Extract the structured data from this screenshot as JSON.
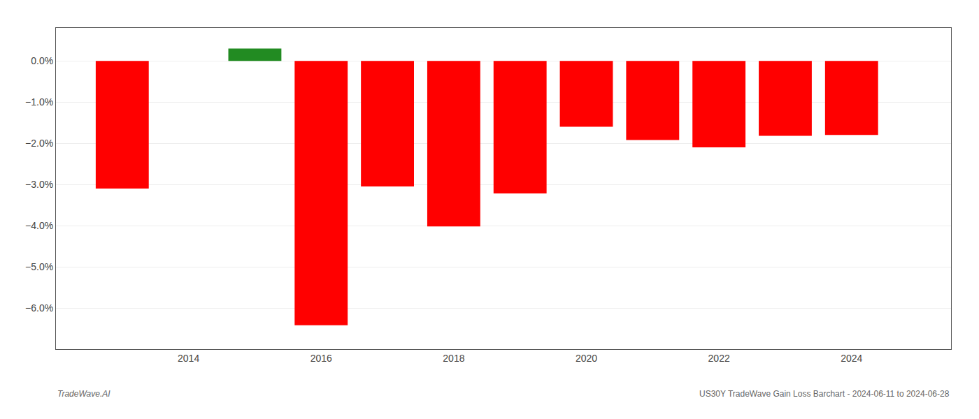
{
  "chart_data": {
    "type": "bar",
    "x": [
      2013,
      2015,
      2016,
      2017,
      2018,
      2019,
      2020,
      2021,
      2022,
      2023,
      2024
    ],
    "values": [
      -3.1,
      0.3,
      -6.42,
      -3.05,
      -4.02,
      -3.22,
      -1.6,
      -1.92,
      -2.1,
      -1.82,
      -1.8
    ],
    "colors": [
      "#ff0000",
      "#228B22",
      "#ff0000",
      "#ff0000",
      "#ff0000",
      "#ff0000",
      "#ff0000",
      "#ff0000",
      "#ff0000",
      "#ff0000",
      "#ff0000"
    ],
    "xlim": [
      2012.0,
      2025.5
    ],
    "xticks": [
      2014,
      2016,
      2018,
      2020,
      2022,
      2024
    ],
    "ylim": [
      -7.0,
      0.8
    ],
    "yticks": [
      {
        "value": 0.0,
        "label": "0.0%"
      },
      {
        "value": -1.0,
        "label": "−1.0%"
      },
      {
        "value": -2.0,
        "label": "−2.0%"
      },
      {
        "value": -3.0,
        "label": "−3.0%"
      },
      {
        "value": -4.0,
        "label": "−4.0%"
      },
      {
        "value": -5.0,
        "label": "−5.0%"
      },
      {
        "value": -6.0,
        "label": "−6.0%"
      }
    ],
    "grid": true,
    "annotations": [
      "TradeWave.AI",
      "US30Y TradeWave Gain Loss Barchart - 2024-06-11 to 2024-06-28"
    ]
  }
}
